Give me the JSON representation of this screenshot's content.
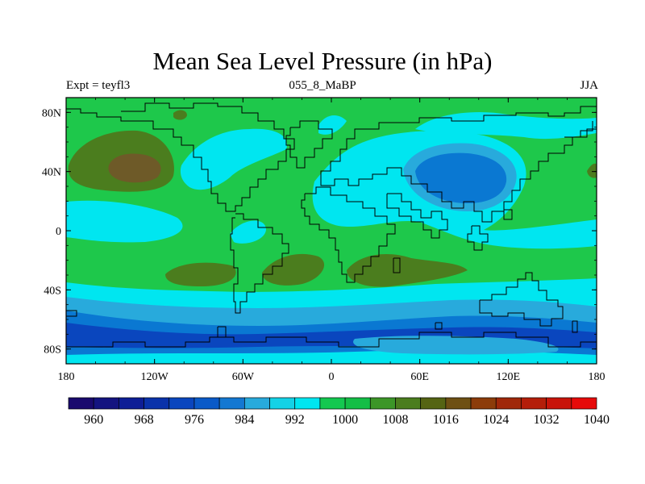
{
  "title": "Mean Sea Level Pressure (in hPa)",
  "subtitle_left": "Expt = teyfl3",
  "subtitle_center": "055_8_MaBP",
  "subtitle_right": "JJA",
  "lat_ticks": [
    {
      "label": "80N",
      "lat": 80
    },
    {
      "label": "40N",
      "lat": 40
    },
    {
      "label": "0",
      "lat": 0
    },
    {
      "label": "40S",
      "lat": -40
    },
    {
      "label": "80S",
      "lat": -80
    }
  ],
  "lon_ticks": [
    {
      "label": "180",
      "lon": -180
    },
    {
      "label": "120W",
      "lon": -120
    },
    {
      "label": "60W",
      "lon": -60
    },
    {
      "label": "0",
      "lon": 0
    },
    {
      "label": "60E",
      "lon": 60
    },
    {
      "label": "120E",
      "lon": 120
    },
    {
      "label": "180",
      "lon": 180
    }
  ],
  "colorbar": {
    "colors": [
      "#1a0a6e",
      "#141480",
      "#0e1e96",
      "#0a32aa",
      "#0a46be",
      "#0a5ac8",
      "#1478d2",
      "#28aadc",
      "#14d2e6",
      "#00e6f0",
      "#14c850",
      "#14be46",
      "#3c9628",
      "#4b7d1e",
      "#556414",
      "#6e5014",
      "#8c3c0a",
      "#a0280a",
      "#b41e0a",
      "#c8140a",
      "#e60a0a"
    ],
    "labels": [
      {
        "text": "960",
        "boundary": 1
      },
      {
        "text": "968",
        "boundary": 3
      },
      {
        "text": "976",
        "boundary": 5
      },
      {
        "text": "984",
        "boundary": 7
      },
      {
        "text": "992",
        "boundary": 9
      },
      {
        "text": "1000",
        "boundary": 11
      },
      {
        "text": "1008",
        "boundary": 13
      },
      {
        "text": "1016",
        "boundary": 15
      },
      {
        "text": "1024",
        "boundary": 17
      },
      {
        "text": "1032",
        "boundary": 19
      },
      {
        "text": "1040",
        "boundary": 21
      }
    ]
  },
  "field_colors": {
    "green": "#1ec84b",
    "cyan": "#00e6f0",
    "light_blue": "#28aadc",
    "mid_blue": "#0a78d2",
    "dark_blue": "#0a46be",
    "olive": "#4b7d1e",
    "brown": "#6e5a28"
  }
}
